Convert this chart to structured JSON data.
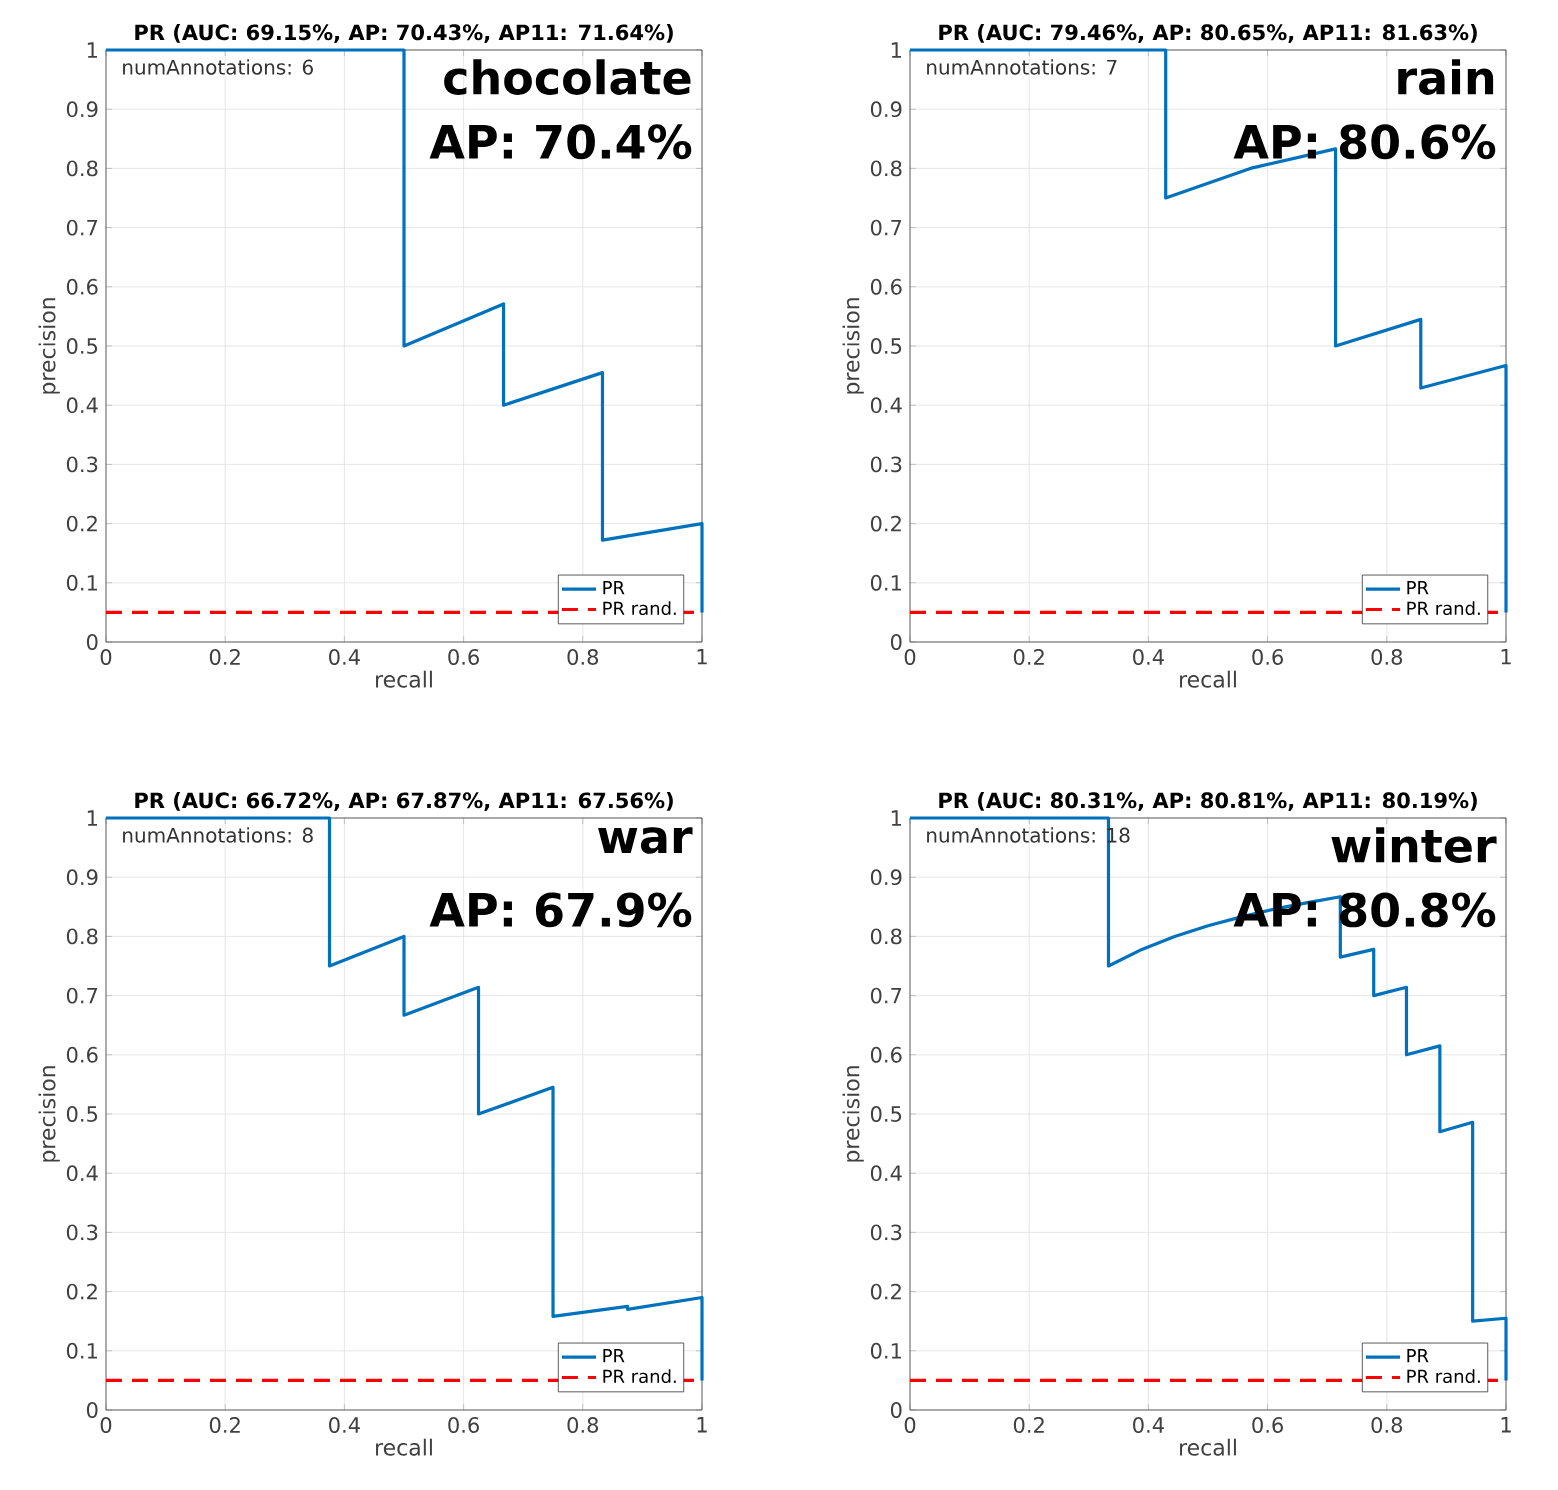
{
  "chart_data": [
    {
      "type": "line",
      "title": "PR (AUC: 69.15%, AP: 70.43%, AP11: 71.64%)",
      "xlabel": "recall",
      "ylabel": "precision",
      "xlim": [
        0,
        1
      ],
      "ylim": [
        0,
        1
      ],
      "xticks": [
        0,
        0.2,
        0.4,
        0.6,
        0.8,
        1
      ],
      "yticks": [
        0,
        0.1,
        0.2,
        0.3,
        0.4,
        0.5,
        0.6,
        0.7,
        0.8,
        0.9,
        1
      ],
      "grid": true,
      "legend": "bottom right",
      "annotations": [
        "numAnnotations: 6",
        "chocolate",
        "AP: 70.4%"
      ],
      "series": [
        {
          "name": "PR",
          "color": "#0072bd",
          "line_style": "solid",
          "x": [
            0,
            0.5,
            0.5,
            0.667,
            0.667,
            0.833,
            0.833,
            1,
            1
          ],
          "values": [
            1,
            1,
            0.5,
            0.571,
            0.4,
            0.455,
            0.172,
            0.2,
            0.05
          ]
        },
        {
          "name": "PR rand.",
          "color": "#ff0000",
          "line_style": "dashed",
          "x": [
            0,
            1
          ],
          "values": [
            0.05,
            0.05
          ]
        }
      ]
    },
    {
      "type": "line",
      "title": "PR (AUC: 79.46%, AP: 80.65%, AP11: 81.63%)",
      "xlabel": "recall",
      "ylabel": "precision",
      "xlim": [
        0,
        1
      ],
      "ylim": [
        0,
        1
      ],
      "xticks": [
        0,
        0.2,
        0.4,
        0.6,
        0.8,
        1
      ],
      "yticks": [
        0,
        0.1,
        0.2,
        0.3,
        0.4,
        0.5,
        0.6,
        0.7,
        0.8,
        0.9,
        1
      ],
      "grid": true,
      "legend": "bottom right",
      "annotations": [
        "numAnnotations: 7",
        "rain",
        "AP: 80.6%"
      ],
      "series": [
        {
          "name": "PR",
          "color": "#0072bd",
          "line_style": "solid",
          "x": [
            0,
            0.429,
            0.429,
            0.571,
            0.714,
            0.714,
            0.857,
            0.857,
            1,
            1
          ],
          "values": [
            1,
            1,
            0.75,
            0.8,
            0.833,
            0.5,
            0.545,
            0.429,
            0.467,
            0.05
          ]
        },
        {
          "name": "PR rand.",
          "color": "#ff0000",
          "line_style": "dashed",
          "x": [
            0,
            1
          ],
          "values": [
            0.05,
            0.05
          ]
        }
      ]
    },
    {
      "type": "line",
      "title": "PR (AUC: 66.72%, AP: 67.87%, AP11: 67.56%)",
      "xlabel": "recall",
      "ylabel": "precision",
      "xlim": [
        0,
        1
      ],
      "ylim": [
        0,
        1
      ],
      "xticks": [
        0,
        0.2,
        0.4,
        0.6,
        0.8,
        1
      ],
      "yticks": [
        0,
        0.1,
        0.2,
        0.3,
        0.4,
        0.5,
        0.6,
        0.7,
        0.8,
        0.9,
        1
      ],
      "grid": true,
      "legend": "bottom right",
      "annotations": [
        "numAnnotations: 8",
        "war",
        "AP: 67.9%"
      ],
      "series": [
        {
          "name": "PR",
          "color": "#0072bd",
          "line_style": "solid",
          "x": [
            0,
            0.375,
            0.375,
            0.5,
            0.5,
            0.625,
            0.625,
            0.75,
            0.75,
            0.875,
            0.875,
            1,
            1
          ],
          "values": [
            1,
            1,
            0.75,
            0.8,
            0.667,
            0.714,
            0.5,
            0.545,
            0.158,
            0.175,
            0.17,
            0.19,
            0.05
          ]
        },
        {
          "name": "PR rand.",
          "color": "#ff0000",
          "line_style": "dashed",
          "x": [
            0,
            1
          ],
          "values": [
            0.05,
            0.05
          ]
        }
      ]
    },
    {
      "type": "line",
      "title": "PR (AUC: 80.31%, AP: 80.81%, AP11: 80.19%)",
      "xlabel": "recall",
      "ylabel": "precision",
      "xlim": [
        0,
        1
      ],
      "ylim": [
        0,
        1
      ],
      "xticks": [
        0,
        0.2,
        0.4,
        0.6,
        0.8,
        1
      ],
      "yticks": [
        0,
        0.1,
        0.2,
        0.3,
        0.4,
        0.5,
        0.6,
        0.7,
        0.8,
        0.9,
        1
      ],
      "grid": true,
      "legend": "bottom right",
      "annotations": [
        "numAnnotations: 18",
        "winter",
        "AP: 80.8%"
      ],
      "series": [
        {
          "name": "PR",
          "color": "#0072bd",
          "line_style": "solid",
          "x": [
            0,
            0.333,
            0.333,
            0.389,
            0.444,
            0.5,
            0.556,
            0.611,
            0.667,
            0.722,
            0.722,
            0.778,
            0.778,
            0.833,
            0.833,
            0.889,
            0.889,
            0.944,
            0.944,
            1,
            1
          ],
          "values": [
            1,
            1,
            0.75,
            0.778,
            0.8,
            0.818,
            0.833,
            0.846,
            0.857,
            0.867,
            0.765,
            0.778,
            0.7,
            0.714,
            0.6,
            0.615,
            0.47,
            0.486,
            0.15,
            0.155,
            0.05
          ]
        },
        {
          "name": "PR rand.",
          "color": "#ff0000",
          "line_style": "dashed",
          "x": [
            0,
            1
          ],
          "values": [
            0.05,
            0.05
          ]
        }
      ]
    }
  ]
}
